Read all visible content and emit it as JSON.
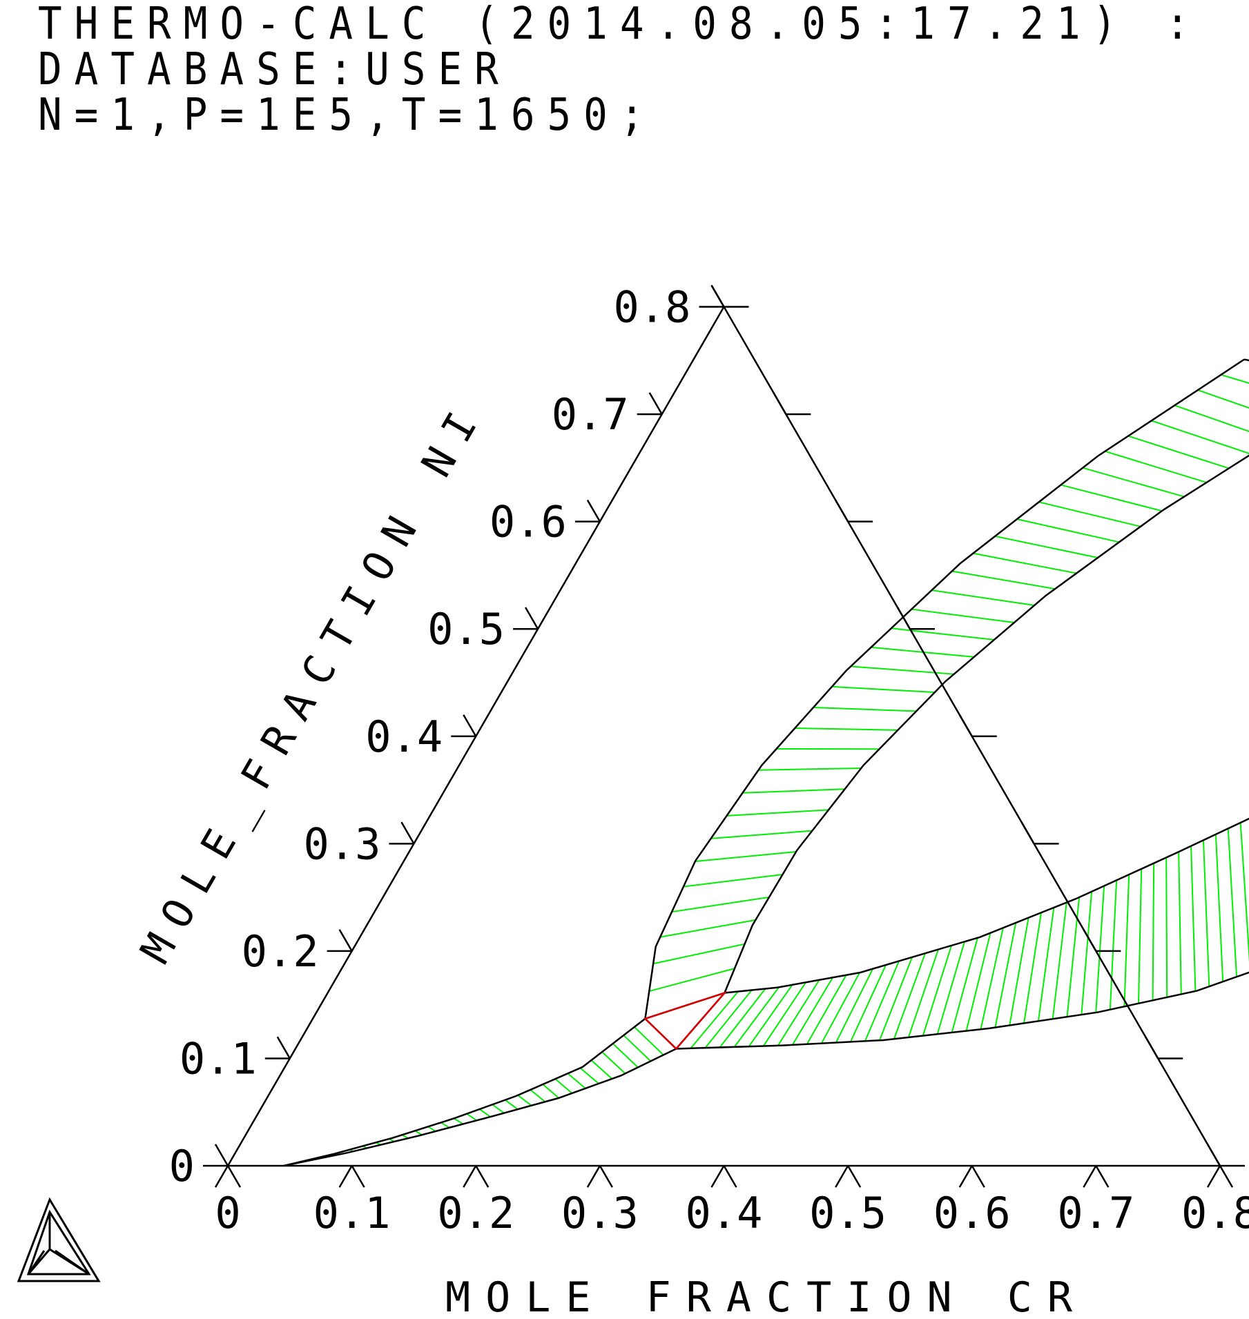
{
  "header": {
    "line1": "THERMO-CALC (2014.08.05:17.21) :",
    "line2": "DATABASE:USER",
    "line3": "N=1,P=1E5,T=1650;"
  },
  "colors": {
    "frame": "#000000",
    "tie_line": "#00ee00",
    "tie_triangle": "#dd0000"
  },
  "chart_data": {
    "type": "ternary-phase-diagram",
    "xlabel": "MOLE_FRACTION CR",
    "ylabel": "MOLE_FRACTION NI",
    "xlim": [
      0,
      0.8
    ],
    "ylim": [
      0,
      0.8
    ],
    "x_ticks": [
      "0",
      "0.1",
      "0.2",
      "0.3",
      "0.4",
      "0.5",
      "0.6",
      "0.7",
      "0.8"
    ],
    "y_ticks": [
      "0",
      "0.1",
      "0.2",
      "0.3",
      "0.4",
      "0.5",
      "0.6",
      "0.7",
      "0.8"
    ],
    "tie_triangle": [
      [
        0.268,
        0.137
      ],
      [
        0.307,
        0.109
      ],
      [
        0.32,
        0.161
      ]
    ],
    "regions": [
      {
        "inner": [
          [
            0.045,
            0.0
          ],
          [
            0.08,
            0.011
          ],
          [
            0.12,
            0.026
          ],
          [
            0.16,
            0.044
          ],
          [
            0.2,
            0.065
          ],
          [
            0.24,
            0.092
          ],
          [
            0.268,
            0.137
          ]
        ],
        "outer": [
          [
            0.045,
            0.0
          ],
          [
            0.09,
            0.012
          ],
          [
            0.14,
            0.028
          ],
          [
            0.19,
            0.046
          ],
          [
            0.235,
            0.063
          ],
          [
            0.275,
            0.084
          ],
          [
            0.307,
            0.109
          ]
        ],
        "tie_lines": 30
      },
      {
        "inner": [
          [
            0.32,
            0.161
          ],
          [
            0.36,
            0.166
          ],
          [
            0.42,
            0.18
          ],
          [
            0.5,
            0.213
          ],
          [
            0.56,
            0.249
          ],
          [
            0.62,
            0.292
          ],
          [
            0.664,
            0.325
          ]
        ],
        "outer": [
          [
            0.307,
            0.109
          ],
          [
            0.39,
            0.112
          ],
          [
            0.47,
            0.117
          ],
          [
            0.55,
            0.128
          ],
          [
            0.63,
            0.143
          ],
          [
            0.7,
            0.163
          ],
          [
            0.743,
            0.185
          ]
        ],
        "tie_lines": 42
      },
      {
        "inner": [
          [
            0.268,
            0.137
          ],
          [
            0.243,
            0.204
          ],
          [
            0.235,
            0.284
          ],
          [
            0.244,
            0.373
          ],
          [
            0.268,
            0.461
          ],
          [
            0.31,
            0.561
          ],
          [
            0.371,
            0.661
          ],
          [
            0.444,
            0.751
          ]
        ],
        "outer": [
          [
            0.32,
            0.161
          ],
          [
            0.311,
            0.224
          ],
          [
            0.312,
            0.294
          ],
          [
            0.326,
            0.373
          ],
          [
            0.353,
            0.451
          ],
          [
            0.394,
            0.531
          ],
          [
            0.449,
            0.611
          ],
          [
            0.513,
            0.685
          ],
          [
            0.487,
            0.742
          ]
        ],
        "tie_lines": 34
      }
    ]
  }
}
